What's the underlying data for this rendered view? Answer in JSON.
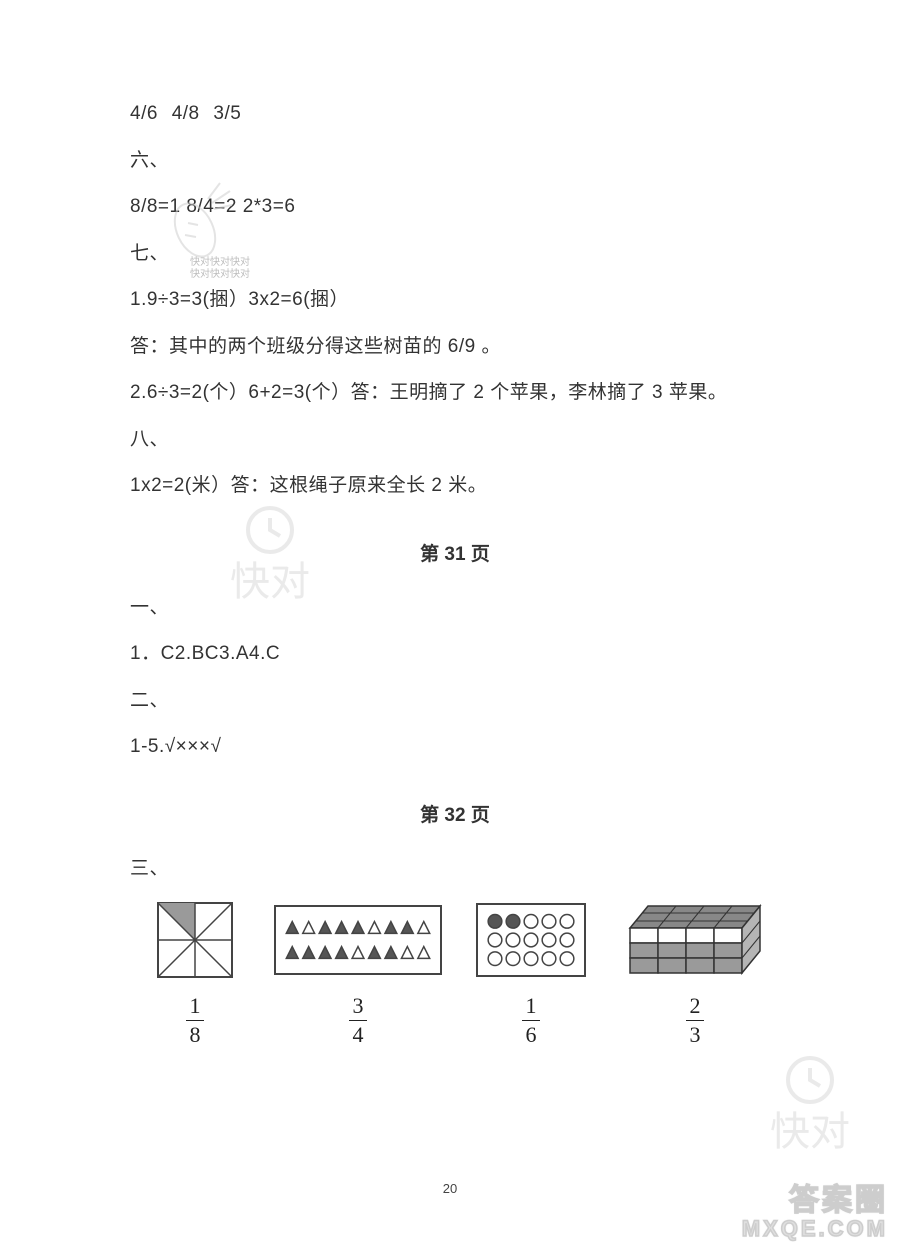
{
  "lines": {
    "l1": "4/6    4/8    3/5",
    "l2": "六、",
    "l3": "8/8=1      8/4=2    2*3=6",
    "l4": "七、",
    "l5": "1.9÷3=3(捆）3x2=6(捆）",
    "l6": "答：其中的两个班级分得这些树苗的 6/9 。",
    "l7": "2.6÷3=2(个）6+2=3(个）答：王明摘了 2 个苹果，李林摘了 3 苹果。",
    "l8": "八、",
    "l9": "1x2=2(米）答：这根绳子原来全长 2 米。",
    "hdr1": "第 31 页",
    "l10": "一、",
    "l11": "1．C2.BC3.A4.C",
    "l12": "二、",
    "l13": "1-5.√×××√",
    "hdr2": "第 32 页",
    "l14": "三、"
  },
  "fractions": {
    "f1": {
      "num": "1",
      "den": "8"
    },
    "f2": {
      "num": "3",
      "den": "4"
    },
    "f3": {
      "num": "1",
      "den": "6"
    },
    "f4": {
      "num": "2",
      "den": "3"
    }
  },
  "pageNumber": "20",
  "watermarks": {
    "answers_top": "答案圈",
    "answers_bottom": "MXQE.COM",
    "kuaidui": "快对",
    "carrot_text1": "快对快对快对",
    "carrot_text2": "快对快对快对"
  },
  "figures": {
    "fig1": {
      "stroke": "#444444",
      "fill": "#9a9a9a",
      "bg": "#ffffff"
    },
    "fig2": {
      "border": "#444444",
      "bg": "#ffffff",
      "triFill": "#555555",
      "triEmpty": "#ffffff",
      "triStroke": "#444444",
      "pattern": [
        [
          1,
          0,
          1,
          1,
          1,
          0,
          1,
          1,
          0
        ],
        [
          1,
          1,
          1,
          1,
          0,
          1,
          1,
          0,
          0
        ]
      ]
    },
    "fig3": {
      "border": "#444444",
      "bg": "#ffffff",
      "circFill": "#555555",
      "circEmpty": "#ffffff",
      "circStroke": "#444444",
      "pattern": [
        [
          1,
          1,
          0,
          0,
          0
        ],
        [
          0,
          0,
          0,
          0,
          0
        ],
        [
          0,
          0,
          0,
          0,
          0
        ]
      ]
    },
    "fig4": {
      "stroke": "#333333",
      "topFill": "#888888",
      "sideFill": "#b5b5b5",
      "frontFilled": "#9a9a9a",
      "frontEmpty": "#ffffff"
    }
  }
}
